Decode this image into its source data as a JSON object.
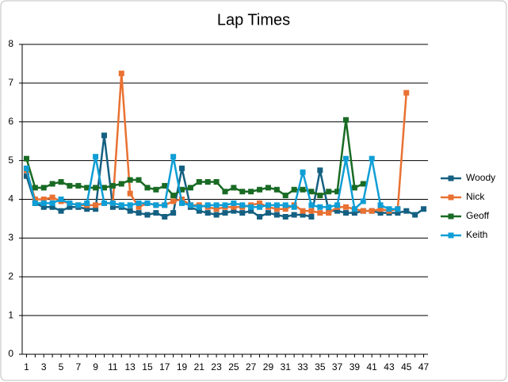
{
  "chart_data": {
    "type": "line",
    "title": "Lap Times",
    "categories": [
      "1",
      null,
      "3",
      null,
      "5",
      null,
      "7",
      null,
      "9",
      null,
      "11",
      null,
      "13",
      null,
      "15",
      null,
      "17",
      null,
      "19",
      null,
      "21",
      null,
      "23",
      null,
      "25",
      null,
      "27",
      null,
      "29",
      null,
      "31",
      null,
      "33",
      null,
      "35",
      null,
      "37",
      null,
      "39",
      null,
      "41",
      null,
      "43",
      null,
      "45",
      null,
      "47"
    ],
    "series": [
      {
        "name": "Woody",
        "color": "#156082",
        "values": [
          4.6,
          3.9,
          3.8,
          3.8,
          3.7,
          3.8,
          3.8,
          3.75,
          3.75,
          5.65,
          3.8,
          3.8,
          3.7,
          3.65,
          3.6,
          3.65,
          3.55,
          3.65,
          4.8,
          3.8,
          3.7,
          3.65,
          3.6,
          3.65,
          3.7,
          3.65,
          3.7,
          3.55,
          3.65,
          3.6,
          3.55,
          3.6,
          3.6,
          3.55,
          4.75,
          3.7,
          3.7,
          3.65,
          3.65,
          3.7,
          3.7,
          3.65,
          3.65,
          3.65,
          3.7,
          3.6,
          3.75
        ]
      },
      {
        "name": "Nick",
        "color": "#e97132",
        "values": [
          4.75,
          4.0,
          4.0,
          4.05,
          3.95,
          3.9,
          3.85,
          3.85,
          3.85,
          3.9,
          3.9,
          7.25,
          4.15,
          3.8,
          3.9,
          3.85,
          3.85,
          3.95,
          4.0,
          3.85,
          3.85,
          3.8,
          3.75,
          3.8,
          3.8,
          3.8,
          3.85,
          3.9,
          3.8,
          3.75,
          3.75,
          3.85,
          3.7,
          3.7,
          3.65,
          3.65,
          3.8,
          3.8,
          3.75,
          3.7,
          3.7,
          3.75,
          3.7,
          3.75,
          6.75,
          null,
          null
        ]
      },
      {
        "name": "Geoff",
        "color": "#196b24",
        "values": [
          5.05,
          4.3,
          4.3,
          4.4,
          4.45,
          4.35,
          4.35,
          4.3,
          4.3,
          4.3,
          4.35,
          4.4,
          4.5,
          4.5,
          4.3,
          4.25,
          4.35,
          4.1,
          4.25,
          4.3,
          4.45,
          4.45,
          4.45,
          4.2,
          4.3,
          4.2,
          4.2,
          4.25,
          4.3,
          4.25,
          4.1,
          4.25,
          4.25,
          4.2,
          4.1,
          4.2,
          4.2,
          6.05,
          4.3,
          4.4,
          null,
          null,
          null,
          null,
          null,
          null,
          null
        ]
      },
      {
        "name": "Keith",
        "color": "#0f9ed5",
        "values": [
          4.8,
          3.9,
          3.9,
          3.9,
          4.0,
          3.9,
          3.85,
          3.9,
          5.1,
          3.9,
          3.9,
          3.85,
          3.85,
          3.9,
          3.9,
          3.85,
          3.85,
          5.1,
          3.9,
          3.85,
          3.8,
          3.85,
          3.85,
          3.85,
          3.9,
          3.85,
          3.8,
          3.8,
          3.85,
          3.85,
          3.85,
          3.8,
          4.7,
          3.85,
          3.8,
          3.8,
          3.85,
          5.05,
          3.75,
          3.95,
          5.05,
          3.85,
          3.75,
          3.75,
          null,
          null,
          null
        ]
      }
    ],
    "ylim": [
      0,
      8
    ],
    "yticks": [
      0,
      1,
      2,
      3,
      4,
      5,
      6,
      7,
      8
    ],
    "grid": true,
    "legend": "right"
  }
}
